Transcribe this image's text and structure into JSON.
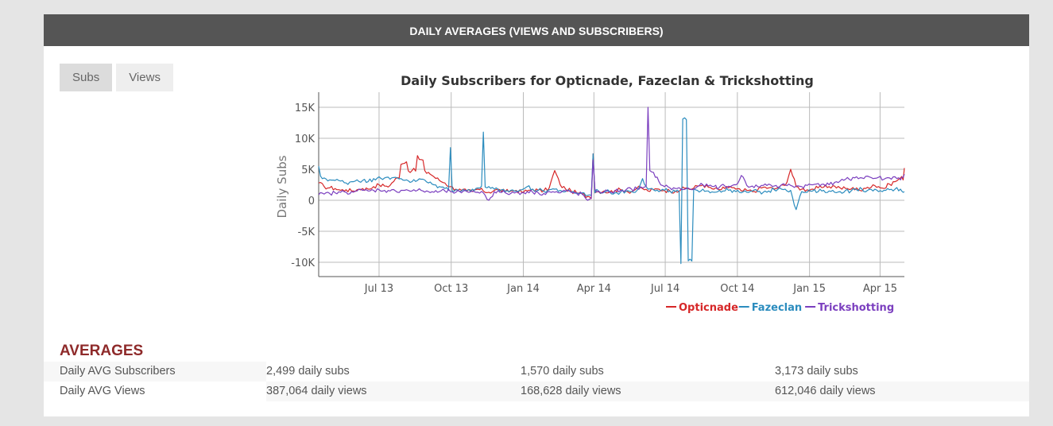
{
  "header": {
    "title": "DAILY AVERAGES (VIEWS AND SUBSCRIBERS)"
  },
  "tabs": [
    {
      "label": "Subs",
      "active": true
    },
    {
      "label": "Views",
      "active": false
    }
  ],
  "chart_data": {
    "type": "line",
    "title": "Daily Subscribers for Opticnade, Fazeclan & Trickshotting",
    "xlabel": "",
    "ylabel": "Daily Subs",
    "ylim": [
      -12500,
      17500
    ],
    "yticks": [
      15000,
      10000,
      5000,
      0,
      -5000,
      -10000
    ],
    "ytick_labels": [
      "15K",
      "10K",
      "5K",
      "0",
      "-5K",
      "-10K"
    ],
    "x_unit": "days since 2013-04-15",
    "xlim": [
      0,
      747
    ],
    "xticks": [
      77,
      169,
      261,
      351,
      442,
      534,
      626,
      716
    ],
    "xtick_labels": [
      "Jul 13",
      "Oct 13",
      "Jan 14",
      "Apr 14",
      "Jul 14",
      "Oct 14",
      "Jan 15",
      "Apr 15"
    ],
    "grid": true,
    "legend": "bottom-right",
    "series": [
      {
        "name": "Opticnade",
        "color": "#d62728",
        "x": [
          0,
          7,
          14,
          21,
          28,
          35,
          42,
          49,
          56,
          63,
          70,
          77,
          84,
          91,
          98,
          105,
          112,
          119,
          126,
          133,
          140,
          147,
          154,
          161,
          168,
          175,
          182,
          189,
          196,
          203,
          210,
          217,
          224,
          231,
          238,
          245,
          252,
          259,
          266,
          273,
          280,
          287,
          294,
          301,
          308,
          315,
          322,
          329,
          336,
          343,
          350,
          357,
          364,
          371,
          378,
          385,
          392,
          399,
          406,
          413,
          420,
          427,
          434,
          441,
          448,
          455,
          462,
          469,
          476,
          483,
          490,
          497,
          504,
          511,
          518,
          525,
          532,
          539,
          546,
          553,
          560,
          567,
          574,
          581,
          588,
          595,
          602,
          609,
          616,
          623,
          630,
          637,
          644,
          651,
          658,
          665,
          672,
          679,
          686,
          693,
          700,
          707,
          714,
          721,
          728,
          735,
          742,
          747
        ],
        "y": [
          2800,
          2200,
          2000,
          1900,
          1600,
          1700,
          1500,
          1700,
          1900,
          1800,
          2200,
          2500,
          2300,
          2400,
          3500,
          5800,
          6200,
          4800,
          7200,
          6500,
          4500,
          3800,
          3200,
          2800,
          2200,
          1800,
          1600,
          1500,
          1400,
          1800,
          1500,
          1300,
          1600,
          1700,
          1400,
          1500,
          1600,
          1300,
          1500,
          1800,
          1600,
          1500,
          2000,
          4800,
          2500,
          1800,
          1500,
          1200,
          1000,
          600,
          7500,
          1400,
          1500,
          1300,
          1600,
          1700,
          1500,
          1400,
          2000,
          1900,
          1500,
          1700,
          1800,
          1600,
          1500,
          1500,
          1700,
          2000,
          1800,
          2300,
          2500,
          2100,
          1800,
          1700,
          1900,
          2200,
          1800,
          1500,
          1600,
          1400,
          1700,
          2100,
          2000,
          1800,
          2200,
          2400,
          5000,
          2200,
          1800,
          1700,
          1800,
          2000,
          2100,
          2200,
          2300,
          2000,
          1900,
          1800,
          2000,
          1500,
          2100,
          2500,
          2200,
          1900,
          2600,
          3000,
          3600,
          5200
        ]
      },
      {
        "name": "Fazeclan",
        "color": "#2b8cbe",
        "x": [
          0,
          7,
          14,
          21,
          28,
          35,
          42,
          49,
          56,
          63,
          70,
          77,
          84,
          91,
          98,
          105,
          112,
          119,
          126,
          133,
          140,
          147,
          154,
          161,
          168,
          175,
          182,
          189,
          196,
          203,
          210,
          217,
          224,
          231,
          238,
          245,
          252,
          259,
          266,
          273,
          280,
          287,
          294,
          301,
          308,
          315,
          322,
          329,
          336,
          343,
          350,
          357,
          364,
          371,
          378,
          385,
          392,
          399,
          406,
          413,
          420,
          427,
          434,
          441,
          448,
          455,
          462,
          469,
          476,
          483,
          490,
          497,
          504,
          511,
          518,
          525,
          532,
          539,
          546,
          553,
          560,
          567,
          574,
          581,
          588,
          595,
          602,
          609,
          616,
          623,
          630,
          637,
          644,
          651,
          658,
          665,
          672,
          679,
          686,
          693,
          700,
          707,
          714,
          721,
          728,
          735,
          742,
          747
        ],
        "y": [
          5500,
          3600,
          3300,
          3200,
          3100,
          2800,
          3000,
          3300,
          3200,
          3000,
          3500,
          3800,
          3600,
          3400,
          3700,
          3500,
          3300,
          3000,
          3200,
          3400,
          2800,
          2500,
          2200,
          1900,
          8500,
          1700,
          1500,
          1600,
          1800,
          2000,
          11000,
          2200,
          1800,
          1500,
          1400,
          1600,
          1500,
          1700,
          2200,
          1800,
          1600,
          1500,
          1700,
          1800,
          1600,
          1400,
          1300,
          1200,
          1200,
          800,
          7500,
          1500,
          1300,
          1400,
          1200,
          1300,
          1500,
          1400,
          1600,
          3500,
          1800,
          1700,
          1400,
          1600,
          1500,
          1400,
          -10200,
          13000,
          -9800,
          1600,
          1800,
          1500,
          1300,
          1600,
          1500,
          1700,
          1400,
          1200,
          1300,
          1500,
          1400,
          1300,
          1500,
          1700,
          2000,
          1800,
          1600,
          -1500,
          1400,
          1300,
          1500,
          1400,
          1600,
          1500,
          1300,
          1400,
          1600,
          1500,
          1700,
          1800,
          1600,
          1500,
          1400,
          1600,
          1700,
          1800,
          1800,
          1400
        ]
      },
      {
        "name": "Trickshotting",
        "color": "#7b3fbf",
        "x": [
          0,
          7,
          14,
          21,
          28,
          35,
          42,
          49,
          56,
          63,
          70,
          77,
          84,
          91,
          98,
          105,
          112,
          119,
          126,
          133,
          140,
          147,
          154,
          161,
          168,
          175,
          182,
          189,
          196,
          203,
          210,
          217,
          224,
          231,
          238,
          245,
          252,
          259,
          266,
          273,
          280,
          287,
          294,
          301,
          308,
          315,
          322,
          329,
          336,
          343,
          350,
          357,
          364,
          371,
          378,
          385,
          392,
          399,
          406,
          413,
          420,
          427,
          434,
          441,
          448,
          455,
          462,
          469,
          476,
          483,
          490,
          497,
          504,
          511,
          518,
          525,
          532,
          539,
          546,
          553,
          560,
          567,
          574,
          581,
          588,
          595,
          602,
          609,
          616,
          623,
          630,
          637,
          644,
          651,
          658,
          665,
          672,
          679,
          686,
          693,
          700,
          707,
          714,
          721,
          728,
          735,
          742,
          747
        ],
        "y": [
          900,
          1000,
          1100,
          1200,
          1300,
          1300,
          1400,
          1500,
          1600,
          1500,
          1600,
          1700,
          1600,
          1500,
          1500,
          1600,
          1700,
          1500,
          1600,
          1500,
          1400,
          1300,
          1400,
          1500,
          1400,
          1300,
          1200,
          1400,
          1500,
          1300,
          1200,
          0,
          1400,
          1300,
          1200,
          1100,
          1300,
          1200,
          1400,
          1300,
          1200,
          1100,
          1400,
          1300,
          1200,
          1500,
          1300,
          1100,
          1000,
          0,
          6500,
          1500,
          1400,
          1300,
          1500,
          1600,
          1700,
          1800,
          1900,
          2000,
          15000,
          4500,
          3000,
          2200,
          2000,
          1900,
          1800,
          1900,
          1700,
          2200,
          2500,
          2300,
          2200,
          2100,
          2300,
          2200,
          2500,
          4000,
          2400,
          2300,
          2200,
          2400,
          2600,
          2300,
          2200,
          2500,
          2400,
          2300,
          2200,
          2400,
          2500,
          2700,
          2600,
          2500,
          2900,
          3100,
          3400,
          3200,
          3800,
          3600,
          3900,
          3500,
          3700,
          3400,
          3600,
          3800,
          3300,
          4200
        ]
      }
    ]
  },
  "averages": {
    "title": "AVERAGES",
    "rows": [
      {
        "label": "Daily AVG Subscribers",
        "values": [
          "2,499 daily subs",
          "1,570 daily subs",
          "3,173 daily subs"
        ]
      },
      {
        "label": "Daily AVG Views",
        "values": [
          "387,064 daily views",
          "168,628 daily views",
          "612,046 daily views"
        ]
      }
    ]
  }
}
